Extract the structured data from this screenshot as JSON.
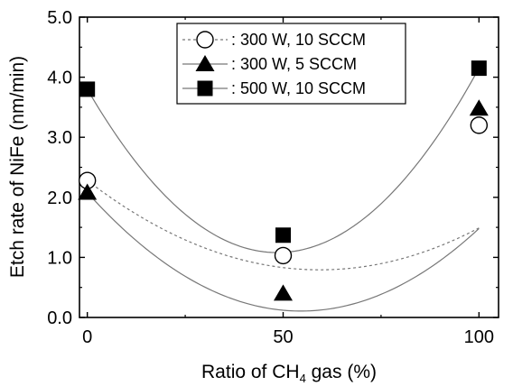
{
  "chart_data": {
    "type": "scatter",
    "title": "",
    "xlabel": {
      "prefix": "Ratio of CH",
      "sub": "4",
      "suffix": " gas (%)"
    },
    "ylabel": "Etch rate of NiFe (nm/min)",
    "xlim": [
      -2,
      105
    ],
    "ylim": [
      0,
      5
    ],
    "x_ticks": [
      "0",
      "50",
      "100"
    ],
    "x_tick_values": [
      0,
      50,
      100
    ],
    "y_ticks": [
      "0.0",
      "1.0",
      "2.0",
      "3.0",
      "4.0",
      "5.0"
    ],
    "y_tick_values": [
      0,
      1,
      2,
      3,
      4,
      5
    ],
    "legend_position": "top-center",
    "series": [
      {
        "name": ": 300 W, 10 SCCM",
        "marker": "open-circle",
        "line": "dotted",
        "x": [
          0,
          50,
          100
        ],
        "values": [
          2.28,
          1.03,
          3.2
        ]
      },
      {
        "name": ": 300 W, 5 SCCM",
        "marker": "filled-triangle",
        "line": "solid",
        "x": [
          0,
          50,
          100
        ],
        "values": [
          2.08,
          0.4,
          3.48
        ]
      },
      {
        "name": ": 500 W, 10 SCCM",
        "marker": "filled-square",
        "line": "solid",
        "x": [
          0,
          50,
          100
        ],
        "values": [
          3.8,
          1.37,
          4.15
        ]
      }
    ],
    "fit_curves": [
      {
        "series": 0,
        "coeffs": [
          2.28,
          -0.0501,
          0.000422
        ]
      },
      {
        "series": 1,
        "coeffs": [
          2.08,
          -0.0724,
          0.000664
        ]
      },
      {
        "series": 2,
        "coeffs": [
          3.8,
          -0.1122,
          0.001157
        ]
      }
    ],
    "colors": {
      "axis": "#000000",
      "curve": "#777777",
      "marker": "#000000"
    }
  }
}
